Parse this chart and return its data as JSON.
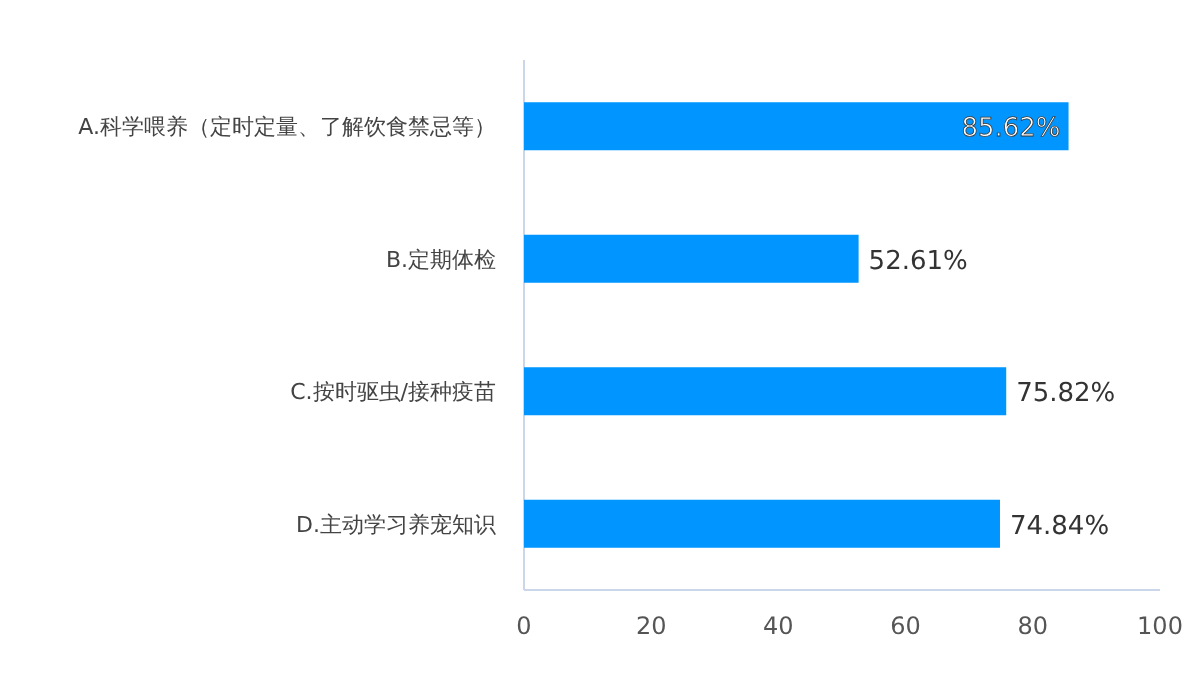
{
  "chart_data": {
    "type": "bar",
    "orientation": "horizontal",
    "categories": [
      "A.科学喂养（定时定量、了解饮食禁忌等）",
      "B.定期体检",
      "C.按时驱虫/接种疫苗",
      "D.主动学习养宠知识"
    ],
    "values": [
      85.62,
      52.61,
      75.82,
      74.84
    ],
    "value_labels": [
      "85.62%",
      "52.61%",
      "75.82%",
      "74.84%"
    ],
    "color": "#0095ff",
    "xlim": [
      0,
      100
    ],
    "xticks": [
      0,
      20,
      40,
      60,
      80,
      100
    ]
  }
}
